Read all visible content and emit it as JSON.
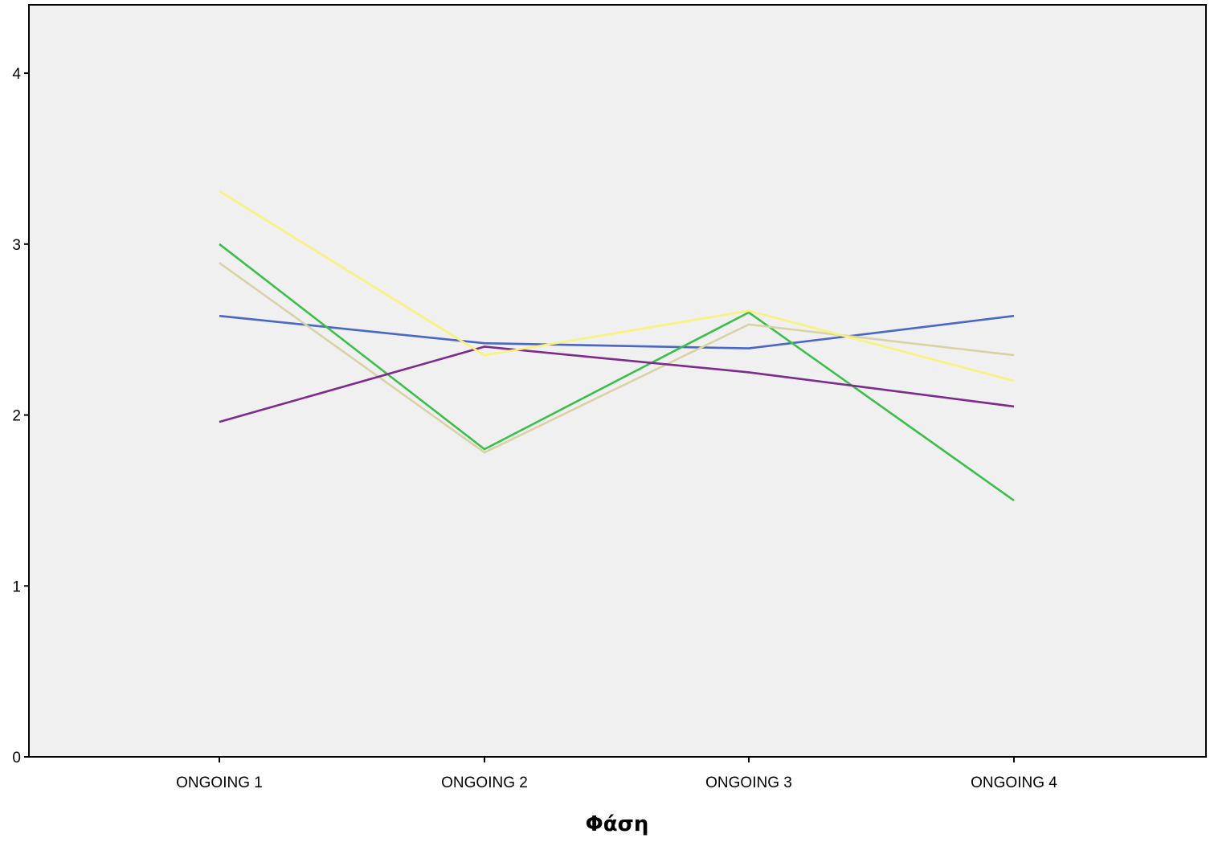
{
  "chart_data": {
    "type": "line",
    "title": "",
    "xlabel": "Φάση",
    "ylabel": "",
    "categories": [
      "ONGOING 1",
      "ONGOING 2",
      "ONGOING 3",
      "ONGOING 4"
    ],
    "ylim": [
      0,
      4.4
    ],
    "yticks": [
      "0",
      "1",
      "2",
      "3",
      "4"
    ],
    "grid": false,
    "plot_background": "#f0f0f0",
    "series": [
      {
        "color": "#4a67c7",
        "values": [
          2.58,
          2.42,
          2.39,
          2.58
        ]
      },
      {
        "color": "#3cbf4a",
        "values": [
          3.0,
          1.8,
          2.6,
          1.5
        ]
      },
      {
        "color": "#d9d2a6",
        "values": [
          2.89,
          1.78,
          2.53,
          2.35
        ]
      },
      {
        "color": "#7d2b8c",
        "values": [
          1.96,
          2.4,
          2.25,
          2.05
        ]
      },
      {
        "color": "#f8f37a",
        "values": [
          3.31,
          2.35,
          2.61,
          2.2
        ]
      }
    ]
  }
}
